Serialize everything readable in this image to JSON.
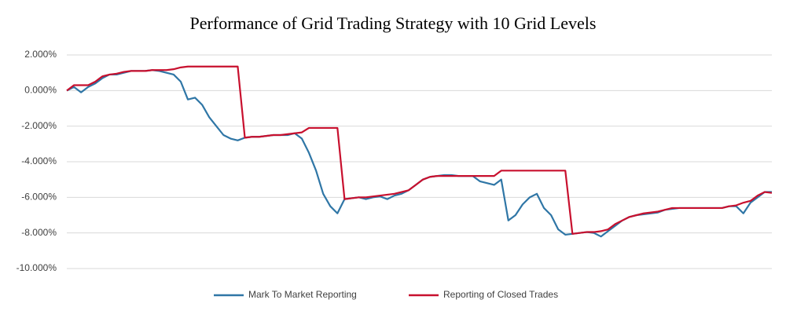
{
  "chart_data": {
    "type": "line",
    "title": "Performance of Grid Trading Strategy with 10 Grid Levels",
    "ylim": [
      -10,
      2
    ],
    "yticks": [
      {
        "value": 2,
        "label": "2.000%"
      },
      {
        "value": 0,
        "label": "0.000%"
      },
      {
        "value": -2,
        "label": "-2.000%"
      },
      {
        "value": -4,
        "label": "-4.000%"
      },
      {
        "value": -6,
        "label": "-6.000%"
      },
      {
        "value": -8,
        "label": "-8.000%"
      },
      {
        "value": -10,
        "label": "-10.000%"
      }
    ],
    "grid": true,
    "legend": "bottom",
    "series": [
      {
        "name": "Mark To Market Reporting",
        "color": "#2f76a6",
        "values": [
          0,
          0.2,
          -0.1,
          0.2,
          0.4,
          0.7,
          0.9,
          0.9,
          1.0,
          1.1,
          1.1,
          1.1,
          1.15,
          1.1,
          1.0,
          0.9,
          0.5,
          -0.5,
          -0.4,
          -0.8,
          -1.5,
          -2.0,
          -2.5,
          -2.7,
          -2.8,
          -2.65,
          -2.6,
          -2.6,
          -2.55,
          -2.5,
          -2.5,
          -2.5,
          -2.4,
          -2.7,
          -3.5,
          -4.5,
          -5.8,
          -6.5,
          -6.9,
          -6.1,
          -6.05,
          -6.0,
          -6.1,
          -6.0,
          -5.95,
          -6.1,
          -5.9,
          -5.8,
          -5.6,
          -5.3,
          -5.0,
          -4.85,
          -4.8,
          -4.75,
          -4.75,
          -4.8,
          -4.8,
          -4.8,
          -5.1,
          -5.2,
          -5.3,
          -5.0,
          -7.3,
          -7.0,
          -6.4,
          -6.0,
          -5.8,
          -6.6,
          -7.0,
          -7.8,
          -8.1,
          -8.05,
          -8.0,
          -7.95,
          -8.0,
          -8.2,
          -7.9,
          -7.6,
          -7.3,
          -7.1,
          -7.0,
          -6.95,
          -6.9,
          -6.85,
          -6.7,
          -6.65,
          -6.6,
          -6.6,
          -6.6,
          -6.6,
          -6.6,
          -6.6,
          -6.6,
          -6.5,
          -6.5,
          -6.9,
          -6.3,
          -6.0,
          -5.7,
          -5.7
        ]
      },
      {
        "name": "Reporting of Closed Trades",
        "color": "#c8102e",
        "values": [
          0,
          0.3,
          0.3,
          0.3,
          0.5,
          0.8,
          0.9,
          0.95,
          1.05,
          1.1,
          1.1,
          1.1,
          1.15,
          1.15,
          1.15,
          1.2,
          1.3,
          1.35,
          1.35,
          1.35,
          1.35,
          1.35,
          1.35,
          1.35,
          1.35,
          -2.65,
          -2.6,
          -2.6,
          -2.55,
          -2.5,
          -2.5,
          -2.45,
          -2.4,
          -2.35,
          -2.1,
          -2.1,
          -2.1,
          -2.1,
          -2.1,
          -6.1,
          -6.05,
          -6.0,
          -6.0,
          -5.95,
          -5.9,
          -5.85,
          -5.8,
          -5.7,
          -5.6,
          -5.3,
          -5.0,
          -4.85,
          -4.8,
          -4.8,
          -4.8,
          -4.8,
          -4.8,
          -4.8,
          -4.8,
          -4.8,
          -4.8,
          -4.5,
          -4.5,
          -4.5,
          -4.5,
          -4.5,
          -4.5,
          -4.5,
          -4.5,
          -4.5,
          -4.5,
          -8.05,
          -8.0,
          -7.95,
          -7.95,
          -7.9,
          -7.8,
          -7.5,
          -7.3,
          -7.1,
          -7.0,
          -6.9,
          -6.85,
          -6.8,
          -6.7,
          -6.6,
          -6.6,
          -6.6,
          -6.6,
          -6.6,
          -6.6,
          -6.6,
          -6.6,
          -6.5,
          -6.45,
          -6.3,
          -6.2,
          -5.9,
          -5.7,
          -5.75
        ]
      }
    ]
  }
}
